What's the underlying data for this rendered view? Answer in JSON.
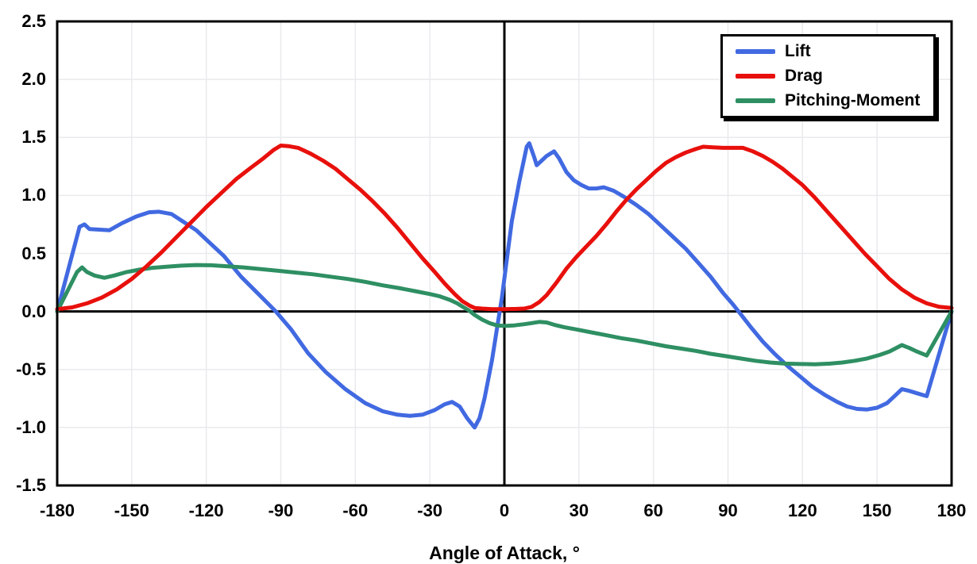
{
  "chart_data": {
    "type": "line",
    "title": "",
    "xlabel": "Angle of Attack, °",
    "ylabel": "",
    "xlim": [
      -180,
      180
    ],
    "ylim": [
      -1.5,
      2.5
    ],
    "x_ticks": [
      -180,
      -150,
      -120,
      -90,
      -60,
      -30,
      0,
      30,
      60,
      90,
      120,
      150,
      180
    ],
    "y_tick_labels": [
      "2.5",
      "2.0",
      "1.5",
      "1.0",
      "0.5",
      "0.0",
      "-0.5",
      "-1.0",
      "-1.5"
    ],
    "grid": true,
    "grid_color": "#e9eaed",
    "axis_color": "#000000",
    "background_color": "#ffffff",
    "legend_position": "top-right",
    "series": [
      {
        "name": "Lift",
        "color": "#4169e1",
        "points": [
          [
            -180,
            0
          ],
          [
            -171,
            0.73
          ],
          [
            -169,
            0.75
          ],
          [
            -167,
            0.71
          ],
          [
            -163,
            0.705
          ],
          [
            -159,
            0.7
          ],
          [
            -154,
            0.76
          ],
          [
            -148,
            0.82
          ],
          [
            -143,
            0.855
          ],
          [
            -139,
            0.86
          ],
          [
            -134,
            0.84
          ],
          [
            -129,
            0.77
          ],
          [
            -124,
            0.7
          ],
          [
            -119,
            0.6
          ],
          [
            -113,
            0.48
          ],
          [
            -106,
            0.3
          ],
          [
            -99,
            0.15
          ],
          [
            -92,
            0
          ],
          [
            -86,
            -0.15
          ],
          [
            -79,
            -0.36
          ],
          [
            -72,
            -0.52
          ],
          [
            -64,
            -0.67
          ],
          [
            -56,
            -0.79
          ],
          [
            -49,
            -0.86
          ],
          [
            -43,
            -0.89
          ],
          [
            -38,
            -0.9
          ],
          [
            -33,
            -0.89
          ],
          [
            -28,
            -0.85
          ],
          [
            -24,
            -0.8
          ],
          [
            -21,
            -0.78
          ],
          [
            -18,
            -0.82
          ],
          [
            -15,
            -0.92
          ],
          [
            -12,
            -1.0
          ],
          [
            -10,
            -0.92
          ],
          [
            -8,
            -0.75
          ],
          [
            -5,
            -0.42
          ],
          [
            -3,
            -0.15
          ],
          [
            -1,
            0.12
          ],
          [
            1,
            0.45
          ],
          [
            3,
            0.78
          ],
          [
            6,
            1.12
          ],
          [
            9,
            1.42
          ],
          [
            10,
            1.45
          ],
          [
            12,
            1.33
          ],
          [
            13,
            1.26
          ],
          [
            15,
            1.3
          ],
          [
            17,
            1.34
          ],
          [
            20,
            1.38
          ],
          [
            22,
            1.32
          ],
          [
            25,
            1.2
          ],
          [
            28,
            1.13
          ],
          [
            31,
            1.09
          ],
          [
            34,
            1.06
          ],
          [
            37,
            1.06
          ],
          [
            40,
            1.07
          ],
          [
            44,
            1.04
          ],
          [
            48,
            0.99
          ],
          [
            53,
            0.92
          ],
          [
            58,
            0.84
          ],
          [
            63,
            0.74
          ],
          [
            68,
            0.64
          ],
          [
            73,
            0.54
          ],
          [
            78,
            0.42
          ],
          [
            83,
            0.3
          ],
          [
            88,
            0.16
          ],
          [
            92,
            0.06
          ],
          [
            95,
            -0.02
          ],
          [
            99,
            -0.13
          ],
          [
            104,
            -0.26
          ],
          [
            109,
            -0.37
          ],
          [
            114,
            -0.47
          ],
          [
            119,
            -0.56
          ],
          [
            124,
            -0.65
          ],
          [
            129,
            -0.72
          ],
          [
            134,
            -0.78
          ],
          [
            138,
            -0.82
          ],
          [
            142,
            -0.84
          ],
          [
            146,
            -0.845
          ],
          [
            150,
            -0.83
          ],
          [
            154,
            -0.79
          ],
          [
            157,
            -0.73
          ],
          [
            160,
            -0.67
          ],
          [
            163,
            -0.685
          ],
          [
            166,
            -0.705
          ],
          [
            170,
            -0.73
          ],
          [
            180,
            0
          ]
        ]
      },
      {
        "name": "Drag",
        "color": "#e8100c",
        "points": [
          [
            -180,
            0.02
          ],
          [
            -174,
            0.035
          ],
          [
            -168,
            0.07
          ],
          [
            -162,
            0.12
          ],
          [
            -156,
            0.19
          ],
          [
            -150,
            0.28
          ],
          [
            -144,
            0.39
          ],
          [
            -138,
            0.51
          ],
          [
            -132,
            0.64
          ],
          [
            -126,
            0.77
          ],
          [
            -120,
            0.9
          ],
          [
            -114,
            1.02
          ],
          [
            -108,
            1.14
          ],
          [
            -102,
            1.24
          ],
          [
            -97,
            1.32
          ],
          [
            -93,
            1.39
          ],
          [
            -90,
            1.43
          ],
          [
            -87,
            1.425
          ],
          [
            -83,
            1.41
          ],
          [
            -78,
            1.36
          ],
          [
            -73,
            1.3
          ],
          [
            -68,
            1.23
          ],
          [
            -63,
            1.14
          ],
          [
            -58,
            1.05
          ],
          [
            -53,
            0.95
          ],
          [
            -48,
            0.84
          ],
          [
            -43,
            0.72
          ],
          [
            -38,
            0.59
          ],
          [
            -33,
            0.46
          ],
          [
            -28,
            0.34
          ],
          [
            -24,
            0.24
          ],
          [
            -20,
            0.15
          ],
          [
            -17,
            0.09
          ],
          [
            -14,
            0.05
          ],
          [
            -12,
            0.03
          ],
          [
            -9,
            0.025
          ],
          [
            -5,
            0.02
          ],
          [
            0,
            0.02
          ],
          [
            5,
            0.022
          ],
          [
            8,
            0.025
          ],
          [
            11,
            0.04
          ],
          [
            14,
            0.08
          ],
          [
            17,
            0.14
          ],
          [
            21,
            0.25
          ],
          [
            25,
            0.37
          ],
          [
            29,
            0.47
          ],
          [
            33,
            0.56
          ],
          [
            37,
            0.65
          ],
          [
            41,
            0.75
          ],
          [
            45,
            0.86
          ],
          [
            49,
            0.96
          ],
          [
            53,
            1.05
          ],
          [
            57,
            1.13
          ],
          [
            61,
            1.21
          ],
          [
            65,
            1.28
          ],
          [
            69,
            1.33
          ],
          [
            73,
            1.37
          ],
          [
            77,
            1.4
          ],
          [
            80,
            1.42
          ],
          [
            84,
            1.415
          ],
          [
            88,
            1.41
          ],
          [
            92,
            1.41
          ],
          [
            96,
            1.41
          ],
          [
            100,
            1.38
          ],
          [
            104,
            1.34
          ],
          [
            108,
            1.29
          ],
          [
            112,
            1.23
          ],
          [
            116,
            1.16
          ],
          [
            120,
            1.09
          ],
          [
            125,
            0.98
          ],
          [
            130,
            0.86
          ],
          [
            135,
            0.74
          ],
          [
            140,
            0.62
          ],
          [
            145,
            0.5
          ],
          [
            150,
            0.39
          ],
          [
            155,
            0.28
          ],
          [
            160,
            0.19
          ],
          [
            165,
            0.12
          ],
          [
            170,
            0.07
          ],
          [
            175,
            0.04
          ],
          [
            180,
            0.03
          ]
        ]
      },
      {
        "name": "Pitching-Moment",
        "color": "#2e8f63",
        "points": [
          [
            -180,
            0
          ],
          [
            -172,
            0.34
          ],
          [
            -170,
            0.38
          ],
          [
            -168,
            0.34
          ],
          [
            -165,
            0.31
          ],
          [
            -161,
            0.29
          ],
          [
            -157,
            0.31
          ],
          [
            -152,
            0.34
          ],
          [
            -147,
            0.36
          ],
          [
            -142,
            0.375
          ],
          [
            -136,
            0.385
          ],
          [
            -130,
            0.395
          ],
          [
            -124,
            0.4
          ],
          [
            -118,
            0.398
          ],
          [
            -112,
            0.39
          ],
          [
            -105,
            0.38
          ],
          [
            -98,
            0.365
          ],
          [
            -91,
            0.35
          ],
          [
            -84,
            0.335
          ],
          [
            -77,
            0.32
          ],
          [
            -70,
            0.3
          ],
          [
            -63,
            0.28
          ],
          [
            -56,
            0.255
          ],
          [
            -49,
            0.225
          ],
          [
            -42,
            0.2
          ],
          [
            -36,
            0.175
          ],
          [
            -30,
            0.15
          ],
          [
            -26,
            0.13
          ],
          [
            -22,
            0.1
          ],
          [
            -19,
            0.07
          ],
          [
            -16,
            0.03
          ],
          [
            -14,
            0.005
          ],
          [
            -12,
            -0.03
          ],
          [
            -9,
            -0.07
          ],
          [
            -6,
            -0.1
          ],
          [
            -3,
            -0.12
          ],
          [
            0,
            -0.125
          ],
          [
            4,
            -0.12
          ],
          [
            8,
            -0.11
          ],
          [
            11,
            -0.1
          ],
          [
            14,
            -0.09
          ],
          [
            17,
            -0.095
          ],
          [
            20,
            -0.115
          ],
          [
            24,
            -0.135
          ],
          [
            29,
            -0.155
          ],
          [
            35,
            -0.18
          ],
          [
            41,
            -0.205
          ],
          [
            47,
            -0.23
          ],
          [
            53,
            -0.25
          ],
          [
            59,
            -0.275
          ],
          [
            65,
            -0.3
          ],
          [
            71,
            -0.32
          ],
          [
            77,
            -0.34
          ],
          [
            83,
            -0.365
          ],
          [
            89,
            -0.385
          ],
          [
            95,
            -0.405
          ],
          [
            101,
            -0.425
          ],
          [
            107,
            -0.44
          ],
          [
            113,
            -0.45
          ],
          [
            119,
            -0.453
          ],
          [
            125,
            -0.455
          ],
          [
            131,
            -0.45
          ],
          [
            136,
            -0.44
          ],
          [
            141,
            -0.425
          ],
          [
            146,
            -0.405
          ],
          [
            151,
            -0.375
          ],
          [
            155,
            -0.345
          ],
          [
            160,
            -0.29
          ],
          [
            163,
            -0.315
          ],
          [
            166,
            -0.345
          ],
          [
            170,
            -0.38
          ],
          [
            180,
            0
          ]
        ]
      }
    ],
    "draw_order": [
      0,
      2,
      1
    ]
  }
}
